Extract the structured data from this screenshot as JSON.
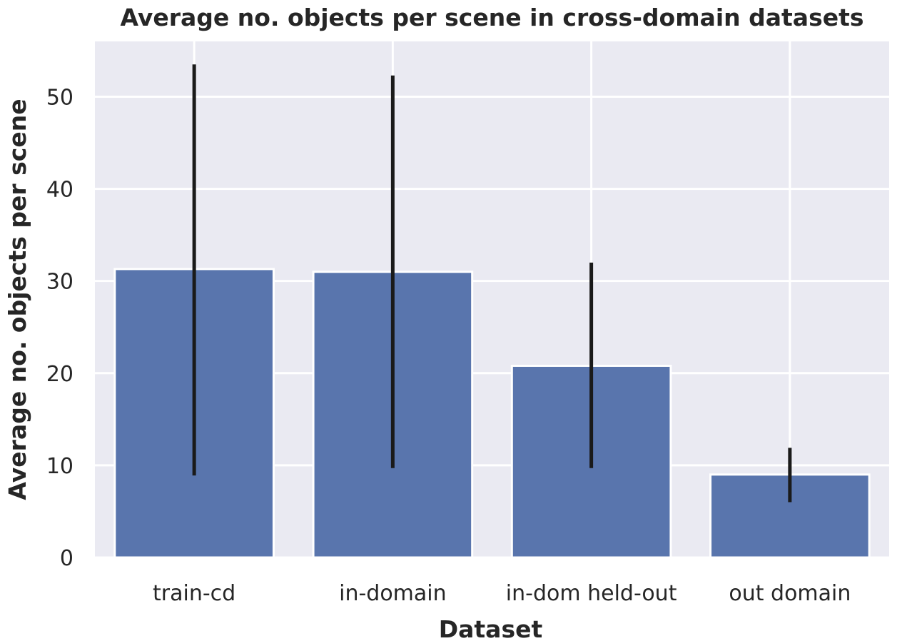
{
  "chart_data": {
    "type": "bar",
    "title": "Average no. objects per scene in cross-domain datasets",
    "xlabel": "Dataset",
    "ylabel": "Average no. objects per scene",
    "categories": [
      "train-cd",
      "in-domain",
      "in-dom held-out",
      "out domain"
    ],
    "values": [
      31.3,
      31.0,
      20.8,
      9.0
    ],
    "error_low": [
      8.9,
      9.7,
      9.7,
      6.0
    ],
    "error_high": [
      53.5,
      52.3,
      32.0,
      11.9
    ],
    "ylim": [
      0,
      56
    ],
    "yticks": [
      0,
      10,
      20,
      30,
      40,
      50
    ],
    "grid": true,
    "colors": {
      "bar": "#5975ad",
      "error_bar": "#1a1a1a",
      "plot_background": "#eaeaf2",
      "grid": "#ffffff"
    }
  }
}
